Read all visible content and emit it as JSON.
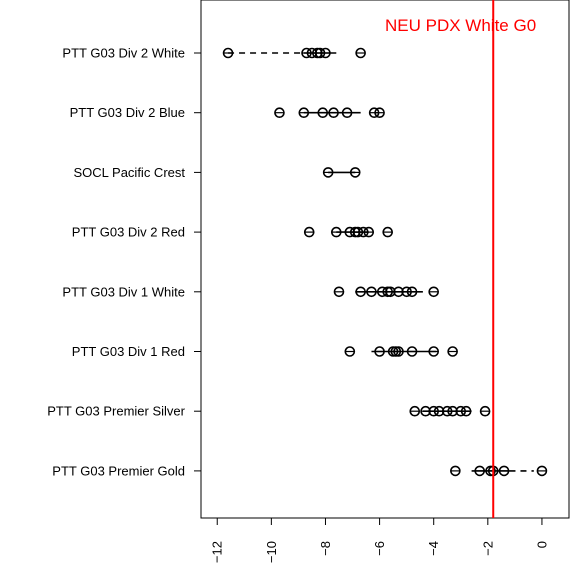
{
  "chart_data": {
    "type": "boxplot",
    "orientation": "horizontal",
    "title": "",
    "xlabel": "",
    "ylabel": "",
    "xlim": [
      -12.6,
      1.0
    ],
    "x_ticks": [
      -12,
      -10,
      -8,
      -6,
      -4,
      -2,
      0
    ],
    "x_tick_labels": [
      "−12",
      "−10",
      "−8",
      "−6",
      "−4",
      "−2",
      "0"
    ],
    "reference_line": {
      "value": -1.8,
      "label": "NEU PDX White G0",
      "color": "#ff0000"
    },
    "categories": [
      "PTT G03 Div 2 White",
      "PTT G03 Div 2 Blue",
      "SOCL Pacific Crest",
      "PTT G03 Div 2 Red",
      "PTT G03 Div 1 White",
      "PTT G03 Div 1 Red",
      "PTT G03 Premier Silver",
      "PTT G03 Premier Gold"
    ],
    "series": [
      {
        "points": [
          -11.6,
          -8.7,
          -8.5,
          -8.3,
          -8.2,
          -8.0,
          -6.7
        ],
        "whisker": [
          -8.8,
          -7.6
        ],
        "dashed": [
          -11.6,
          -8.8
        ]
      },
      {
        "points": [
          -9.7,
          -8.8,
          -8.1,
          -7.7,
          -7.2,
          -6.2,
          -6.0
        ],
        "whisker": [
          -8.8,
          -6.7
        ],
        "dashed": []
      },
      {
        "points": [
          -7.9,
          -6.9
        ],
        "whisker": [
          -7.9,
          -6.9
        ],
        "dashed": []
      },
      {
        "points": [
          -8.6,
          -7.6,
          -7.1,
          -6.9,
          -6.8,
          -6.6,
          -6.4,
          -5.7
        ],
        "whisker": [
          -7.6,
          -6.4
        ],
        "dashed": []
      },
      {
        "points": [
          -7.5,
          -6.7,
          -6.3,
          -5.9,
          -5.7,
          -5.6,
          -5.3,
          -5.0,
          -4.8,
          -4.0
        ],
        "whisker": [
          -6.9,
          -4.4
        ],
        "dashed": []
      },
      {
        "points": [
          -7.1,
          -6.0,
          -5.5,
          -5.4,
          -5.3,
          -4.8,
          -4.0,
          -3.3
        ],
        "whisker": [
          -6.3,
          -3.9
        ],
        "dashed": []
      },
      {
        "points": [
          -4.7,
          -4.3,
          -4.0,
          -3.8,
          -3.5,
          -3.3,
          -3.0,
          -2.8,
          -2.1
        ],
        "whisker": [
          -4.4,
          -2.6
        ],
        "dashed": []
      },
      {
        "points": [
          -3.2,
          -2.3,
          -1.9,
          -1.8,
          -1.4,
          0.0
        ],
        "whisker": [
          -2.6,
          -1.2
        ],
        "dashed": [
          -1.2,
          -0.3
        ]
      }
    ]
  }
}
